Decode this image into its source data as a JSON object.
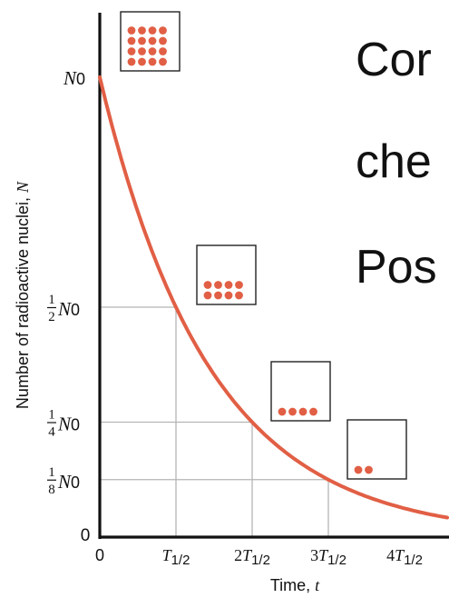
{
  "slide_text": {
    "line1": "Cor",
    "line2": "che",
    "line3": "Pos"
  },
  "colors": {
    "curve": "#e15f45",
    "dots": "#e15f45",
    "grid": "#b5b5b5",
    "axis": "#111111"
  },
  "chart_data": {
    "type": "line",
    "title": "",
    "xlabel": "Time, t",
    "ylabel": "Number of radioactive nuclei, N",
    "x_ticks": [
      "0",
      "T1/2",
      "2T1/2",
      "3T1/2",
      "4T1/2"
    ],
    "y_ticks": [
      {
        "num": "",
        "den": "",
        "sym": "0",
        "value": 0
      },
      {
        "num": "1",
        "den": "8",
        "sym": "N0",
        "value": 0.125
      },
      {
        "num": "1",
        "den": "4",
        "sym": "N0",
        "value": 0.25
      },
      {
        "num": "1",
        "den": "2",
        "sym": "N0",
        "value": 0.5
      },
      {
        "num": "",
        "den": "",
        "sym": "N0",
        "value": 1
      }
    ],
    "xlim": [
      0,
      4.7
    ],
    "ylim": [
      0,
      1.28
    ],
    "series": [
      {
        "function": "N = N0 * 2^(-t / T1/2)",
        "x": [
          0,
          0.5,
          1,
          1.5,
          2,
          2.5,
          3,
          3.5,
          4,
          4.7
        ],
        "values": [
          1,
          0.707,
          0.5,
          0.354,
          0.25,
          0.177,
          0.125,
          0.088,
          0.0625,
          0.039
        ]
      }
    ],
    "gridlines_at_half_lives": [
      1,
      2,
      3
    ],
    "insets": [
      {
        "at_half_lives": 0,
        "dots": 16
      },
      {
        "at_half_lives": 1,
        "dots": 8
      },
      {
        "at_half_lives": 2,
        "dots": 4
      },
      {
        "at_half_lives": 3,
        "dots": 2
      }
    ]
  }
}
